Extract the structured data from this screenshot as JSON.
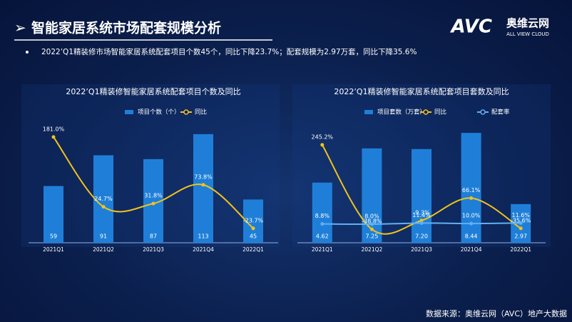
{
  "title": "智能家居系统市场配套规模分析",
  "bullet": "2022’Q1精装修市场智能家居系统配套项目个数45个，同比下降23.7%；配套规模为2.97万套，同比下降35.6%",
  "logo": {
    "brand": "AVC",
    "name": "奥维云网",
    "tagline": "ALL VIEW CLOUD"
  },
  "source": "数据来源：奥维云网（AVC）地产大数据",
  "chart_data": [
    {
      "type": "bar",
      "title": "2022’Q1精装修智能家居系统配套项目个数及同比",
      "categories": [
        "2021Q1",
        "2021Q2",
        "2021Q3",
        "2021Q4",
        "2022Q1"
      ],
      "ylim": [
        0,
        130
      ],
      "y2lim": [
        -56,
        224
      ],
      "series": [
        {
          "name": "项目个数（个）",
          "type": "bar",
          "color": "#1f7fd8",
          "values": [
            59,
            91,
            87,
            113,
            45
          ]
        },
        {
          "name": "同比",
          "type": "line",
          "axis": "y2",
          "color": "#f2c21b",
          "values": [
            181.0,
            24.7,
            31.8,
            73.8,
            -23.7
          ],
          "value_labels": [
            "181.0%",
            "24.7%",
            "31.8%",
            "73.8%",
            "-23.7%"
          ]
        }
      ]
    },
    {
      "type": "bar",
      "title": "2022’Q1精装修智能家居系统配套项目套数及同比",
      "categories": [
        "2021Q1",
        "2021Q2",
        "2021Q3",
        "2021Q4",
        "2022Q1"
      ],
      "ylim": [
        0,
        9.6
      ],
      "y2lim": [
        -84,
        336
      ],
      "y3lim": [
        -50,
        340
      ],
      "series": [
        {
          "name": "项目套数（万套）",
          "type": "bar",
          "color": "#1f7fd8",
          "values": [
            4.62,
            7.25,
            7.2,
            8.44,
            2.97
          ],
          "value_labels": [
            "4.62",
            "7.25",
            "7.20",
            "8.44",
            "2.97"
          ]
        },
        {
          "name": "同比",
          "type": "line",
          "axis": "y2",
          "color": "#f2c21b",
          "values": [
            245.2,
            -38.8,
            -9.3,
            66.1,
            -35.6
          ],
          "value_labels": [
            "245.2%",
            "-38.8%",
            "-9.3%",
            "66.1%",
            "-35.6%"
          ]
        },
        {
          "name": "配套率",
          "type": "line",
          "axis": "y3",
          "color": "#5fb0f5",
          "values": [
            8.8,
            8.0,
            11.4,
            10.0,
            11.6
          ],
          "value_labels": [
            "8.8%",
            "8.0%",
            "11.4%",
            "10.0%",
            "11.6%"
          ]
        }
      ]
    }
  ]
}
